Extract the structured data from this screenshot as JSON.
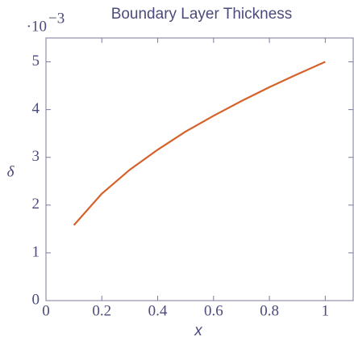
{
  "chart_data": {
    "type": "line",
    "title": "Boundary Layer Thickness",
    "x_label": "x",
    "y_label": "δ",
    "y_multiplier": {
      "base": "·10",
      "exponent": "−3"
    },
    "x": [
      0.1,
      0.2,
      0.3,
      0.4,
      0.5,
      0.6,
      0.7,
      0.8,
      0.9,
      1.0
    ],
    "series": [
      {
        "color": "#d4622a",
        "values": [
          1.58,
          2.24,
          2.74,
          3.16,
          3.54,
          3.87,
          4.18,
          4.47,
          4.74,
          5.0
        ]
      }
    ],
    "xlim": [
      0,
      1.1
    ],
    "ylim": [
      0,
      5.5
    ],
    "xticks": [
      0,
      0.2,
      0.4,
      0.6,
      0.8,
      1
    ],
    "yticks": [
      0,
      1,
      2,
      3,
      4,
      5
    ]
  }
}
